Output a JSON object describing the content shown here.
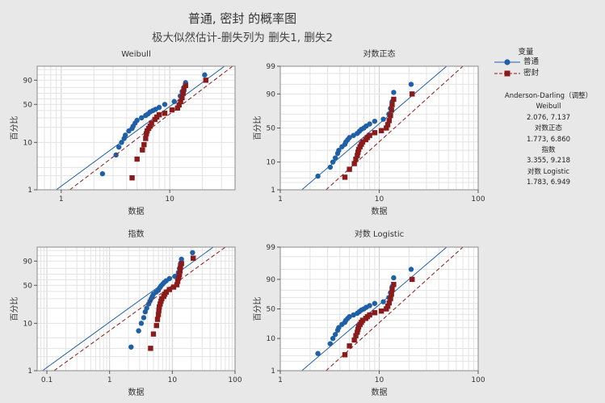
{
  "title": "普通, 密封 的概率图",
  "subtitle": "极大似然估计-删失列为 删失1, 删失2",
  "legend": {
    "header": "变量",
    "items": [
      {
        "label": "普通",
        "color": "#1f5fa6",
        "marker": "circle",
        "line": "solid"
      },
      {
        "label": "密封",
        "color": "#8b1a1a",
        "marker": "square",
        "line": "dashed"
      }
    ]
  },
  "goodness_of_fit": {
    "header": "Anderson-Darling（调整）",
    "entries": [
      {
        "name": "Weibull",
        "values": "2.076, 7.137"
      },
      {
        "name": "对数正态",
        "values": "1.773, 6.860"
      },
      {
        "name": "指数",
        "values": "3.355, 9.218"
      },
      {
        "name": "对数 Logistic",
        "values": "1.783, 6.949"
      }
    ]
  },
  "chart_data": [
    {
      "type": "scatter",
      "title": "Weibull",
      "xlabel": "数据",
      "ylabel": "百分比",
      "x_scale": "log",
      "y_scale": "weibull",
      "xlim": [
        0.6,
        40
      ],
      "ylim": [
        1,
        99
      ],
      "x_ticks": [
        1,
        10
      ],
      "y_ticks": [
        1,
        10,
        50,
        90
      ],
      "series": [
        {
          "name": "普通",
          "points": [
            [
              2.4,
              2.2
            ],
            [
              3.2,
              5.5
            ],
            [
              3.4,
              8
            ],
            [
              3.6,
              10
            ],
            [
              3.8,
              12
            ],
            [
              3.9,
              14
            ],
            [
              4.2,
              17
            ],
            [
              4.5,
              19
            ],
            [
              4.6,
              21
            ],
            [
              4.8,
              24
            ],
            [
              5.0,
              27
            ],
            [
              5.5,
              30
            ],
            [
              6.0,
              33
            ],
            [
              6.3,
              35
            ],
            [
              6.6,
              38
            ],
            [
              7.0,
              40
            ],
            [
              7.4,
              42
            ],
            [
              8.0,
              45
            ],
            [
              9.0,
              50
            ],
            [
              11.0,
              55
            ],
            [
              12.5,
              65
            ],
            [
              13.0,
              73
            ],
            [
              13.5,
              80
            ],
            [
              14.0,
              87
            ],
            [
              21.0,
              95
            ]
          ],
          "fit_line": [
            [
              0.9,
              1
            ],
            [
              32,
              99
            ]
          ]
        },
        {
          "name": "密封",
          "points": [
            [
              4.5,
              1.8
            ],
            [
              5.0,
              4.5
            ],
            [
              5.6,
              7
            ],
            [
              5.8,
              9
            ],
            [
              6.0,
              12
            ],
            [
              6.1,
              15
            ],
            [
              6.2,
              17
            ],
            [
              6.4,
              19
            ],
            [
              6.6,
              21
            ],
            [
              6.8,
              24
            ],
            [
              7.3,
              28
            ],
            [
              7.6,
              31
            ],
            [
              8.0,
              34
            ],
            [
              9.0,
              36
            ],
            [
              10.5,
              41
            ],
            [
              11.8,
              44
            ],
            [
              12.2,
              49
            ],
            [
              12.6,
              55
            ],
            [
              13.0,
              62
            ],
            [
              13.3,
              70
            ],
            [
              13.5,
              77
            ],
            [
              14.0,
              83
            ],
            [
              21.5,
              90
            ]
          ],
          "fit_line": [
            [
              1.2,
              1
            ],
            [
              38,
              99
            ]
          ]
        }
      ]
    },
    {
      "type": "scatter",
      "title": "对数正态",
      "xlabel": "数据",
      "ylabel": "百分比",
      "x_scale": "log",
      "y_scale": "normal",
      "xlim": [
        1,
        100
      ],
      "ylim": [
        1,
        99
      ],
      "x_ticks": [
        1,
        10,
        100
      ],
      "y_ticks": [
        1,
        10,
        50,
        90,
        99
      ],
      "series": [
        {
          "name": "普通",
          "points": [
            [
              2.4,
              3.5
            ],
            [
              3.2,
              7
            ],
            [
              3.4,
              10
            ],
            [
              3.6,
              13
            ],
            [
              3.8,
              17
            ],
            [
              3.9,
              20
            ],
            [
              4.2,
              24
            ],
            [
              4.5,
              27
            ],
            [
              4.6,
              30
            ],
            [
              4.8,
              33
            ],
            [
              5.0,
              36
            ],
            [
              5.5,
              39
            ],
            [
              6.0,
              42
            ],
            [
              6.3,
              45
            ],
            [
              6.6,
              48
            ],
            [
              7.0,
              50
            ],
            [
              7.4,
              53
            ],
            [
              8.0,
              56
            ],
            [
              9.0,
              60
            ],
            [
              11.0,
              63
            ],
            [
              12.5,
              70
            ],
            [
              13.0,
              77
            ],
            [
              13.5,
              84
            ],
            [
              14.0,
              91
            ],
            [
              21.0,
              95
            ]
          ],
          "fit_line": [
            [
              1.65,
              1
            ],
            [
              48,
              99
            ]
          ]
        },
        {
          "name": "密封",
          "points": [
            [
              4.5,
              3.2
            ],
            [
              5.0,
              6
            ],
            [
              5.6,
              9
            ],
            [
              5.8,
              12
            ],
            [
              6.0,
              15
            ],
            [
              6.1,
              18
            ],
            [
              6.2,
              21
            ],
            [
              6.4,
              24
            ],
            [
              6.6,
              27
            ],
            [
              6.8,
              30
            ],
            [
              7.3,
              33
            ],
            [
              7.6,
              36
            ],
            [
              8.0,
              39
            ],
            [
              9.0,
              43
            ],
            [
              10.5,
              46
            ],
            [
              11.8,
              50
            ],
            [
              12.2,
              55
            ],
            [
              12.6,
              61
            ],
            [
              13.0,
              68
            ],
            [
              13.3,
              75
            ],
            [
              13.5,
              81
            ],
            [
              14.0,
              86
            ],
            [
              21.5,
              90
            ]
          ],
          "fit_line": [
            [
              2.9,
              1
            ],
            [
              70,
              99
            ]
          ]
        }
      ]
    },
    {
      "type": "scatter",
      "title": "指数",
      "xlabel": "数据",
      "ylabel": "百分比",
      "x_scale": "log",
      "y_scale": "weibull",
      "xlim": [
        0.07,
        100
      ],
      "ylim": [
        1,
        99
      ],
      "x_ticks": [
        0.1,
        1,
        10,
        100
      ],
      "y_ticks": [
        1,
        10,
        50,
        90
      ],
      "series": [
        {
          "name": "普通",
          "points": [
            [
              2.2,
              3.2
            ],
            [
              2.9,
              7
            ],
            [
              3.2,
              10
            ],
            [
              3.5,
              13
            ],
            [
              3.7,
              17
            ],
            [
              3.9,
              20
            ],
            [
              4.2,
              24
            ],
            [
              4.4,
              27
            ],
            [
              4.6,
              30
            ],
            [
              4.8,
              33
            ],
            [
              5.0,
              36
            ],
            [
              5.5,
              39
            ],
            [
              6.0,
              42
            ],
            [
              6.3,
              46
            ],
            [
              6.6,
              49
            ],
            [
              7.0,
              52
            ],
            [
              7.4,
              55
            ],
            [
              8.0,
              58
            ],
            [
              9.0,
              62
            ],
            [
              11.0,
              66
            ],
            [
              12.5,
              73
            ],
            [
              13.0,
              80
            ],
            [
              13.5,
              87
            ],
            [
              14.0,
              92
            ],
            [
              21.0,
              97
            ]
          ],
          "fit_line": [
            [
              0.085,
              1
            ],
            [
              45,
              99
            ]
          ]
        },
        {
          "name": "密封",
          "points": [
            [
              4.5,
              3
            ],
            [
              5.0,
              6
            ],
            [
              5.6,
              9
            ],
            [
              5.8,
              12
            ],
            [
              6.0,
              15
            ],
            [
              6.1,
              18
            ],
            [
              6.2,
              21
            ],
            [
              6.4,
              24
            ],
            [
              6.6,
              27
            ],
            [
              6.8,
              30
            ],
            [
              7.3,
              33
            ],
            [
              7.6,
              36
            ],
            [
              8.0,
              39
            ],
            [
              9.0,
              43
            ],
            [
              10.5,
              47
            ],
            [
              11.8,
              51
            ],
            [
              12.2,
              57
            ],
            [
              12.6,
              63
            ],
            [
              13.0,
              69
            ],
            [
              13.3,
              76
            ],
            [
              13.5,
              82
            ],
            [
              14.0,
              87
            ],
            [
              21.5,
              93
            ]
          ],
          "fit_line": [
            [
              0.13,
              1
            ],
            [
              70,
              99
            ]
          ]
        }
      ]
    },
    {
      "type": "scatter",
      "title": "对数 Logistic",
      "xlabel": "数据",
      "ylabel": "百分比",
      "x_scale": "log",
      "y_scale": "logistic",
      "xlim": [
        1,
        100
      ],
      "ylim": [
        1,
        99
      ],
      "x_ticks": [
        1,
        10,
        100
      ],
      "y_ticks": [
        1,
        10,
        50,
        90,
        99
      ],
      "series": [
        {
          "name": "普通",
          "points": [
            [
              2.4,
              3.5
            ],
            [
              3.2,
              7
            ],
            [
              3.4,
              10
            ],
            [
              3.6,
              13
            ],
            [
              3.8,
              17
            ],
            [
              3.9,
              20
            ],
            [
              4.2,
              24
            ],
            [
              4.5,
              27
            ],
            [
              4.6,
              30
            ],
            [
              4.8,
              33
            ],
            [
              5.0,
              36
            ],
            [
              5.5,
              39
            ],
            [
              6.0,
              42
            ],
            [
              6.3,
              45
            ],
            [
              6.6,
              48
            ],
            [
              7.0,
              50
            ],
            [
              7.4,
              53
            ],
            [
              8.0,
              56
            ],
            [
              9.0,
              60
            ],
            [
              11.0,
              63
            ],
            [
              12.5,
              70
            ],
            [
              13.0,
              77
            ],
            [
              13.5,
              84
            ],
            [
              14.0,
              91
            ],
            [
              21.0,
              95
            ]
          ],
          "fit_line": [
            [
              1.65,
              1
            ],
            [
              48,
              99
            ]
          ]
        },
        {
          "name": "密封",
          "points": [
            [
              4.5,
              3.2
            ],
            [
              5.0,
              6
            ],
            [
              5.6,
              9
            ],
            [
              5.8,
              12
            ],
            [
              6.0,
              15
            ],
            [
              6.1,
              18
            ],
            [
              6.2,
              21
            ],
            [
              6.4,
              24
            ],
            [
              6.6,
              27
            ],
            [
              6.8,
              30
            ],
            [
              7.3,
              33
            ],
            [
              7.6,
              36
            ],
            [
              8.0,
              39
            ],
            [
              9.0,
              43
            ],
            [
              10.5,
              46
            ],
            [
              11.8,
              50
            ],
            [
              12.2,
              55
            ],
            [
              12.6,
              61
            ],
            [
              13.0,
              68
            ],
            [
              13.3,
              75
            ],
            [
              13.5,
              81
            ],
            [
              14.0,
              86
            ],
            [
              21.5,
              90
            ]
          ],
          "fit_line": [
            [
              2.9,
              1
            ],
            [
              70,
              99
            ]
          ]
        }
      ]
    }
  ]
}
